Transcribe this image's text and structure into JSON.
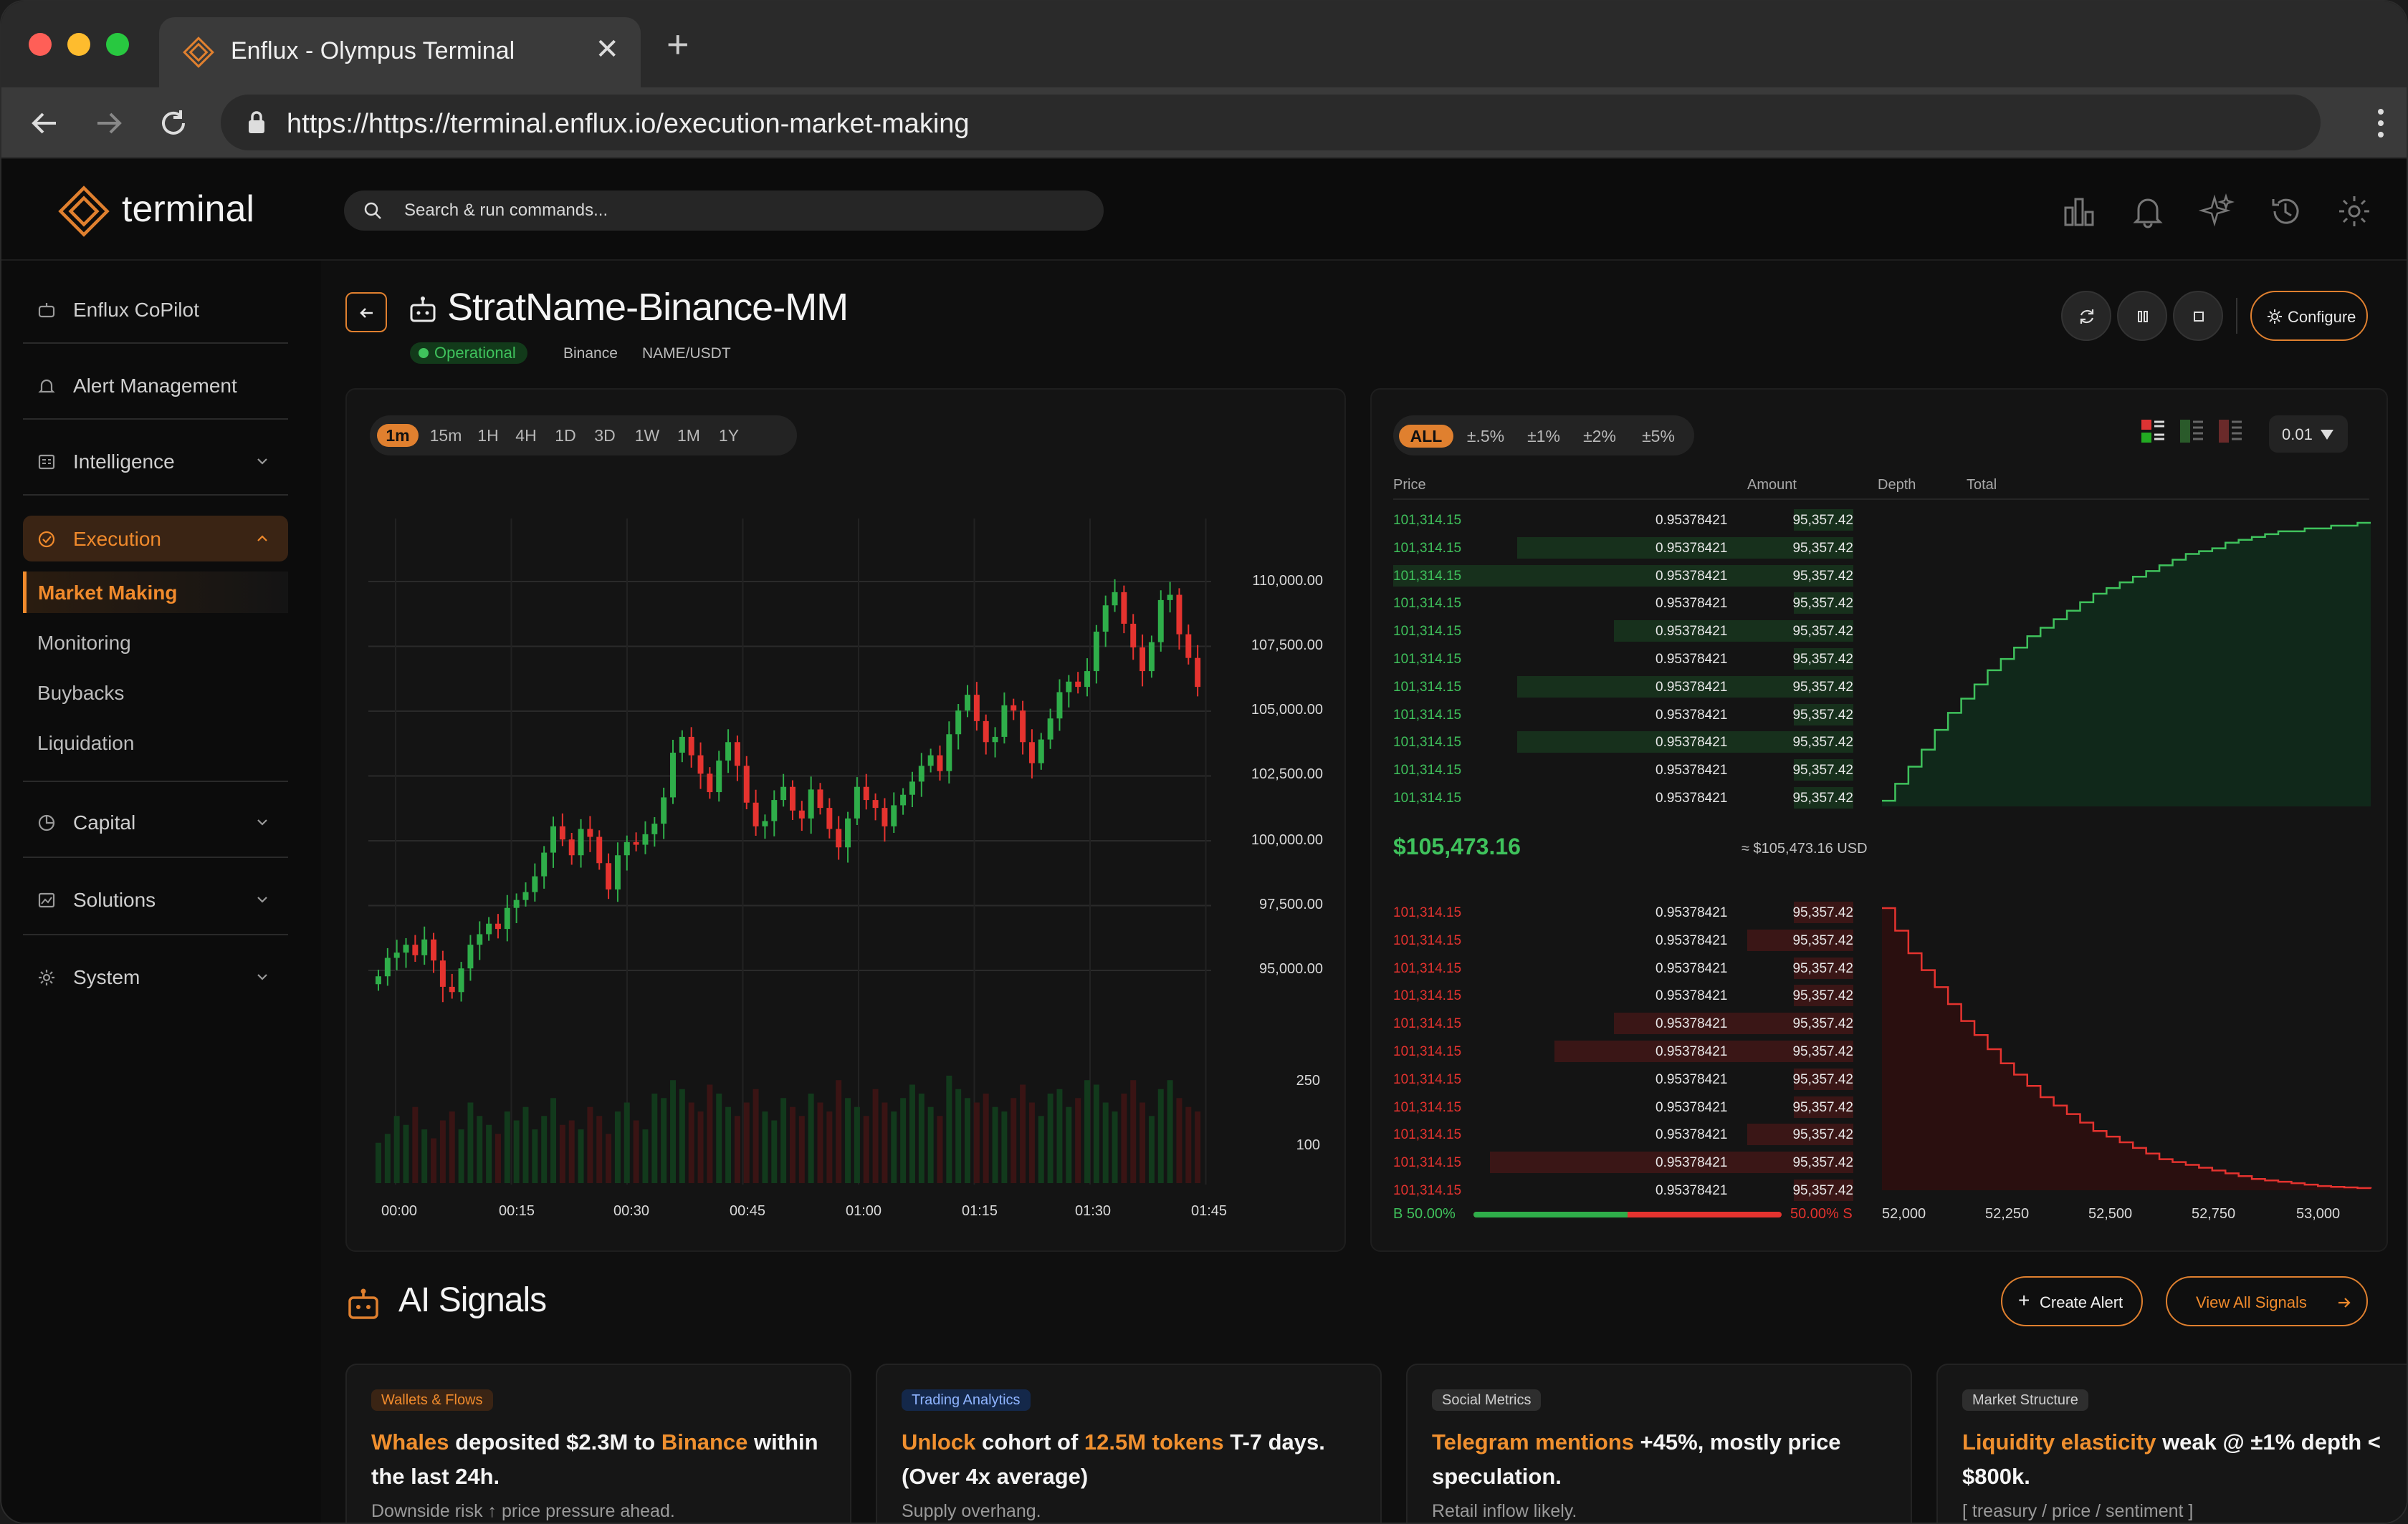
{
  "browser": {
    "tab_title": "Enflux - Olympus Terminal",
    "url": "https://https://terminal.enflux.io/execution-market-making",
    "new_tab": "+",
    "close": "✕"
  },
  "header": {
    "logo_text": "terminal",
    "search_placeholder": "Search & run commands..."
  },
  "sidebar": {
    "items": [
      {
        "label": "Enflux CoPilot"
      },
      {
        "label": "Alert Management"
      },
      {
        "label": "Intelligence"
      },
      {
        "label": "Execution"
      },
      {
        "label": "Capital"
      },
      {
        "label": "Solutions"
      },
      {
        "label": "System"
      }
    ],
    "execution_sub": [
      "Market Making",
      "Monitoring",
      "Buybacks",
      "Liquidation"
    ]
  },
  "strategy": {
    "title": "StratName-Binance-MM",
    "status": "Operational",
    "exchange": "Binance",
    "pair": "NAME/USDT",
    "configure_label": "Configure"
  },
  "chart_data": {
    "type": "candlestick",
    "timeframes": [
      "1m",
      "15m",
      "1H",
      "4H",
      "1D",
      "3D",
      "1W",
      "1M",
      "1Y"
    ],
    "active_timeframe": "1m",
    "x_ticks": [
      "00:00",
      "00:15",
      "00:30",
      "00:45",
      "01:00",
      "01:15",
      "01:30",
      "01:45"
    ],
    "price_ticks": [
      "110,000.00",
      "107,500.00",
      "105,000.00",
      "102,500.00",
      "100,000.00",
      "97,500.00",
      "95,000.00"
    ],
    "volume_ticks": [
      "250",
      "100"
    ],
    "price_range": [
      93000,
      112000
    ],
    "colors": {
      "up": "#2fae4a",
      "down": "#e5332f"
    },
    "close_series": [
      94600,
      95300,
      95500,
      95800,
      95400,
      96000,
      95200,
      94200,
      94000,
      94900,
      95800,
      96200,
      96600,
      96400,
      97200,
      97500,
      97800,
      98400,
      99300,
      100300,
      99800,
      99200,
      100200,
      99900,
      98900,
      97900,
      99200,
      99700,
      99600,
      100000,
      100400,
      101400,
      103100,
      103700,
      103000,
      102300,
      101600,
      102800,
      103500,
      102600,
      101200,
      100300,
      100500,
      101300,
      101800,
      100900,
      100600,
      101700,
      101000,
      100200,
      99500,
      100600,
      101800,
      101300,
      101000,
      100300,
      101100,
      101500,
      102000,
      102600,
      103000,
      102400,
      103800,
      104700,
      105300,
      104300,
      103500,
      103700,
      104900,
      104700,
      103500,
      102700,
      103600,
      104400,
      105400,
      105800,
      105600,
      106200,
      107700,
      108700,
      109200,
      108000,
      107100,
      106200,
      107300,
      108900,
      109100,
      107600,
      106700,
      105600
    ],
    "volume_series": [
      90,
      110,
      150,
      130,
      170,
      120,
      100,
      140,
      160,
      120,
      180,
      150,
      130,
      110,
      160,
      140,
      170,
      120,
      150,
      190,
      130,
      140,
      120,
      170,
      150,
      110,
      160,
      180,
      140,
      120,
      200,
      190,
      230,
      210,
      180,
      160,
      220,
      200,
      170,
      150,
      180,
      210,
      160,
      140,
      190,
      170,
      150,
      200,
      180,
      160,
      230,
      190,
      170,
      150,
      210,
      180,
      160,
      190,
      220,
      200,
      170,
      150,
      240,
      210,
      190,
      180,
      200,
      170,
      160,
      190,
      220,
      180,
      150,
      200,
      210,
      170,
      190,
      230,
      220,
      180,
      160,
      200,
      230,
      180,
      150,
      210,
      230,
      190,
      170,
      160
    ]
  },
  "order_book": {
    "filters": [
      "ALL",
      "±.5%",
      "±1%",
      "±2%",
      "±5%"
    ],
    "active_filter": "ALL",
    "precision": "0.01",
    "headers": {
      "price": "Price",
      "amount": "Amount",
      "depth": "Depth",
      "total": "Total"
    },
    "bids": [
      {
        "price": "101,314.15",
        "amount": "0.95378421",
        "total": "95,357.42",
        "fill": 0.13
      },
      {
        "price": "101,314.15",
        "amount": "0.95378421",
        "total": "95,357.42",
        "fill": 0.73
      },
      {
        "price": "101,314.15",
        "amount": "0.95378421",
        "total": "95,357.42",
        "fill": 1.0
      },
      {
        "price": "101,314.15",
        "amount": "0.95378421",
        "total": "95,357.42",
        "fill": 0.13
      },
      {
        "price": "101,314.15",
        "amount": "0.95378421",
        "total": "95,357.42",
        "fill": 0.52
      },
      {
        "price": "101,314.15",
        "amount": "0.95378421",
        "total": "95,357.42",
        "fill": 0.13
      },
      {
        "price": "101,314.15",
        "amount": "0.95378421",
        "total": "95,357.42",
        "fill": 0.73
      },
      {
        "price": "101,314.15",
        "amount": "0.95378421",
        "total": "95,357.42",
        "fill": 0.13
      },
      {
        "price": "101,314.15",
        "amount": "0.95378421",
        "total": "95,357.42",
        "fill": 0.73
      },
      {
        "price": "101,314.15",
        "amount": "0.95378421",
        "total": "95,357.42",
        "fill": 0.13
      },
      {
        "price": "101,314.15",
        "amount": "0.95378421",
        "total": "95,357.42",
        "fill": 0.13
      }
    ],
    "mid_price": "$105,473.16",
    "mid_usd": "≈ $105,473.16 USD",
    "asks": [
      {
        "price": "101,314.15",
        "amount": "0.95378421",
        "total": "95,357.42",
        "fill": 0.13
      },
      {
        "price": "101,314.15",
        "amount": "0.95378421",
        "total": "95,357.42",
        "fill": 0.23
      },
      {
        "price": "101,314.15",
        "amount": "0.95378421",
        "total": "95,357.42",
        "fill": 0.13
      },
      {
        "price": "101,314.15",
        "amount": "0.95378421",
        "total": "95,357.42",
        "fill": 0.13
      },
      {
        "price": "101,314.15",
        "amount": "0.95378421",
        "total": "95,357.42",
        "fill": 0.52
      },
      {
        "price": "101,314.15",
        "amount": "0.95378421",
        "total": "95,357.42",
        "fill": 0.65
      },
      {
        "price": "101,314.15",
        "amount": "0.95378421",
        "total": "95,357.42",
        "fill": 0.13
      },
      {
        "price": "101,314.15",
        "amount": "0.95378421",
        "total": "95,357.42",
        "fill": 0.13
      },
      {
        "price": "101,314.15",
        "amount": "0.95378421",
        "total": "95,357.42",
        "fill": 0.23
      },
      {
        "price": "101,314.15",
        "amount": "0.95378421",
        "total": "95,357.42",
        "fill": 0.79
      },
      {
        "price": "101,314.15",
        "amount": "0.95378421",
        "total": "95,357.42",
        "fill": 0.13
      }
    ],
    "buy_pct_label": "B 50.00%",
    "sell_pct_label": "50.00% S",
    "buy_ratio": 0.5,
    "depth_ticks": [
      "52,000",
      "52,250",
      "52,500",
      "52,750",
      "53,000"
    ],
    "bid_depth_curve": [
      0.02,
      0.08,
      0.14,
      0.2,
      0.27,
      0.33,
      0.38,
      0.43,
      0.48,
      0.52,
      0.56,
      0.6,
      0.63,
      0.66,
      0.69,
      0.72,
      0.75,
      0.77,
      0.79,
      0.81,
      0.83,
      0.85,
      0.87,
      0.89,
      0.9,
      0.91,
      0.93,
      0.94,
      0.95,
      0.96,
      0.97,
      0.97,
      0.98,
      0.98,
      0.99,
      0.99,
      1.0,
      1.0
    ],
    "ask_depth_curve": [
      1.0,
      0.92,
      0.84,
      0.78,
      0.72,
      0.66,
      0.6,
      0.55,
      0.5,
      0.45,
      0.41,
      0.37,
      0.33,
      0.3,
      0.27,
      0.24,
      0.21,
      0.19,
      0.17,
      0.15,
      0.13,
      0.11,
      0.1,
      0.09,
      0.08,
      0.07,
      0.06,
      0.05,
      0.04,
      0.035,
      0.03,
      0.025,
      0.02,
      0.015,
      0.012,
      0.01,
      0.008,
      0.006
    ]
  },
  "signals": {
    "title": "AI Signals",
    "create_alert": "Create Alert",
    "view_all": "View All Signals",
    "cards": [
      {
        "tag": "Wallets & Flows",
        "parts": [
          [
            "Whales",
            true
          ],
          [
            " deposited $2.3M to ",
            false
          ],
          [
            "Binance",
            true
          ],
          [
            " within the last 24h.",
            false
          ]
        ],
        "sub": "Downside risk ↑ price pressure ahead."
      },
      {
        "tag": "Trading Analytics",
        "parts": [
          [
            "Unlock",
            true
          ],
          [
            " cohort of ",
            false
          ],
          [
            "12.5M tokens",
            true
          ],
          [
            " T-7 days. (Over 4x average)",
            false
          ]
        ],
        "sub": "Supply overhang."
      },
      {
        "tag": "Social Metrics",
        "parts": [
          [
            "Telegram mentions",
            true
          ],
          [
            " +45%, mostly price speculation.",
            false
          ]
        ],
        "sub": "Retail inflow likely."
      },
      {
        "tag": "Market Structure",
        "parts": [
          [
            "Liquidity elasticity",
            true
          ],
          [
            " weak @ ±1% depth < $800k.",
            false
          ]
        ],
        "sub": "[ treasury / price / sentiment ]"
      }
    ]
  },
  "colors": {
    "accent": "#e0802f",
    "bid": "#3fc25c",
    "ask": "#e5332f"
  }
}
